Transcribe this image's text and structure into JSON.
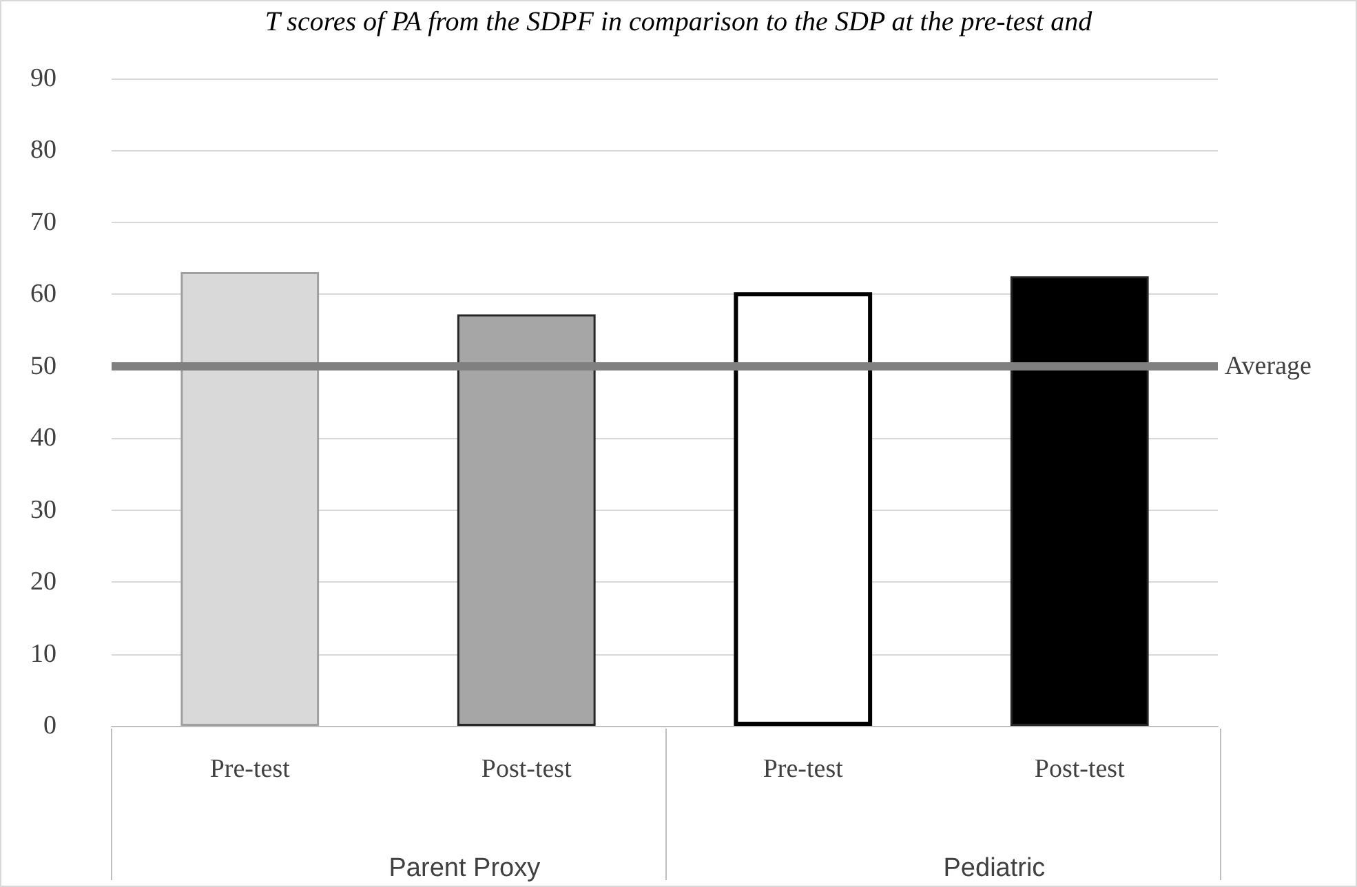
{
  "chart_data": {
    "type": "bar",
    "title": "T scores of PA from the SDPF in comparison to the SDP at the pre-test and",
    "categories": [
      "Pre-test",
      "Post-test",
      "Pre-test",
      "Post-test"
    ],
    "values": [
      63.1,
      57.2,
      60.3,
      62.5
    ],
    "colors": [
      "#d9d9d9",
      "#a6a6a6",
      "#ffffff",
      "#000000"
    ],
    "ylim": [
      0,
      90
    ],
    "yticks": [
      0,
      10,
      20,
      30,
      40,
      50,
      60,
      70,
      80,
      90
    ],
    "grid": "y",
    "ref_lines": [
      {
        "axis": "y",
        "value": 50,
        "label": "Average",
        "color": "#808080"
      }
    ],
    "annotations": [
      "Parent Proxy",
      "Pediatric"
    ]
  }
}
